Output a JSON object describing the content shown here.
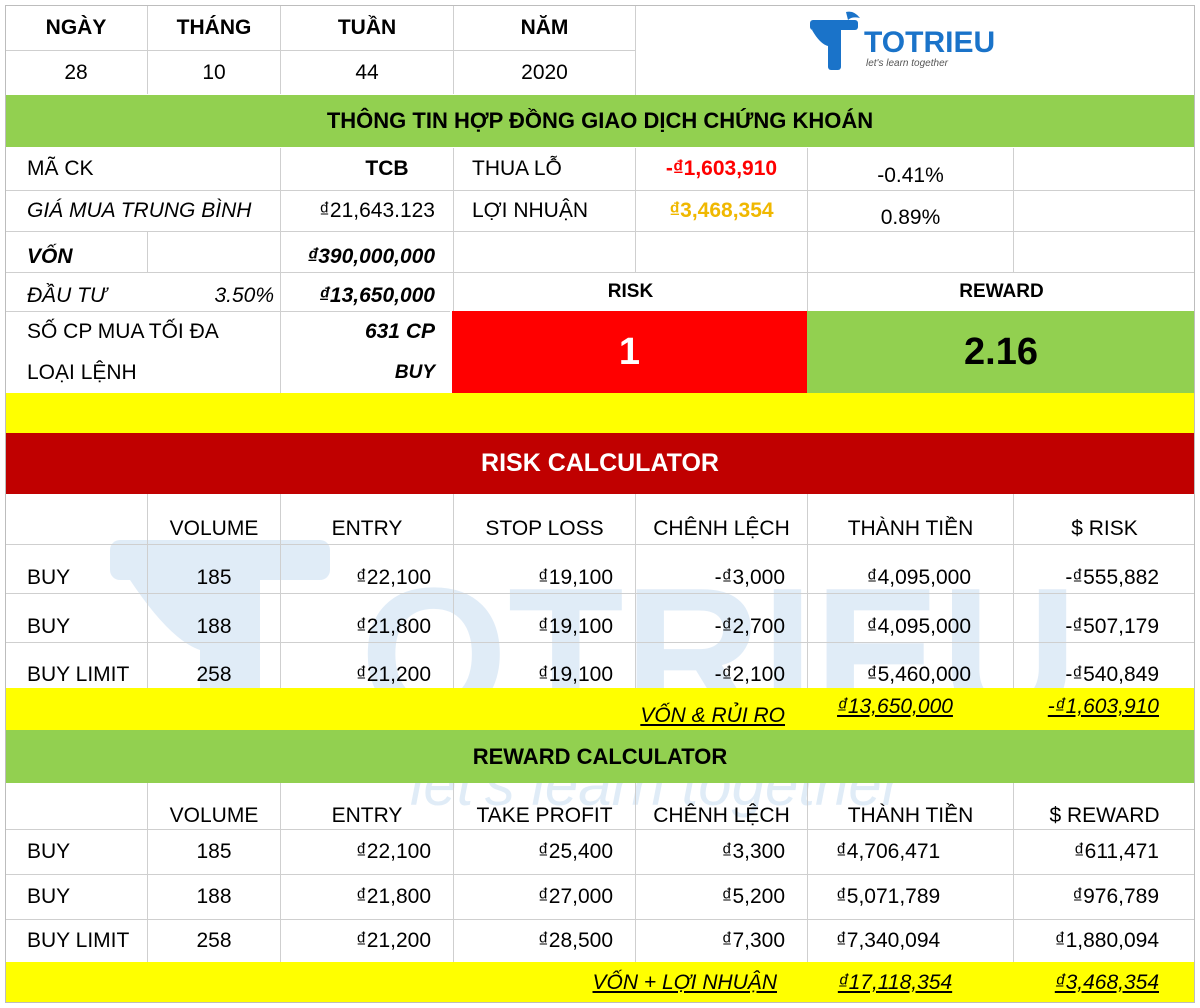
{
  "date_header": {
    "day_label": "NGÀY",
    "month_label": "THÁNG",
    "week_label": "TUẦN",
    "year_label": "NĂM",
    "day": "28",
    "month": "10",
    "week": "44",
    "year": "2020"
  },
  "logo": {
    "brand": "TOTRIEU",
    "tagline": "let's learn together",
    "colors": {
      "blue": "#1a73c9"
    }
  },
  "contract": {
    "title": "THÔNG TIN HỢP ĐỒNG GIAO DỊCH CHỨNG KHOÁN",
    "code_label": "MÃ CK",
    "code": "TCB",
    "loss_label": "THUA LỖ",
    "loss": "-₫1,603,910",
    "loss_pct": "-0.41%",
    "avg_price_label": "GIÁ MUA TRUNG BÌNH",
    "avg_price": "₫21,643.123",
    "profit_label": "LỢI NHUẬN",
    "profit": "₫3,468,354",
    "profit_pct": "0.89%",
    "capital_label": "VỐN",
    "capital": "₫390,000,000",
    "invest_label": "ĐẦU TƯ",
    "invest_pct": "3.50%",
    "invest": "₫13,650,000",
    "max_shares_label": "SỐ CP MUA TỐI ĐA",
    "max_shares": "631 CP",
    "order_type_label": "LOẠI LỆNH",
    "order_type": "BUY",
    "risk_label": "RISK",
    "risk_value": "1",
    "reward_label": "REWARD",
    "reward_value": "2.16"
  },
  "risk_calc": {
    "title": "RISK CALCULATOR",
    "headers": [
      "VOLUME",
      "ENTRY",
      "STOP LOSS",
      "CHÊNH LỆCH",
      "THÀNH TIỀN",
      "$ RISK"
    ],
    "rows": [
      [
        "BUY",
        "185",
        "₫22,100",
        "₫19,100",
        "-₫3,000",
        "₫4,095,000",
        "-₫555,882"
      ],
      [
        "BUY",
        "188",
        "₫21,800",
        "₫19,100",
        "-₫2,700",
        "₫4,095,000",
        "-₫507,179"
      ],
      [
        "BUY LIMIT",
        "258",
        "₫21,200",
        "₫19,100",
        "-₫2,100",
        "₫5,460,000",
        "-₫540,849"
      ]
    ],
    "total_label": "VỐN & RỦI RO",
    "total_amount": "₫13,650,000",
    "total_risk": "-₫1,603,910"
  },
  "reward_calc": {
    "title": "REWARD CALCULATOR",
    "headers": [
      "VOLUME",
      "ENTRY",
      "TAKE PROFIT",
      "CHÊNH LỆCH",
      "THÀNH TIỀN",
      "$ REWARD"
    ],
    "rows": [
      [
        "BUY",
        "185",
        "₫22,100",
        "₫25,400",
        "₫3,300",
        "₫4,706,471",
        "₫611,471"
      ],
      [
        "BUY",
        "188",
        "₫21,800",
        "₫27,000",
        "₫5,200",
        "₫5,071,789",
        "₫976,789"
      ],
      [
        "BUY LIMIT",
        "258",
        "₫21,200",
        "₫28,500",
        "₫7,300",
        "₫7,340,094",
        "₫1,880,094"
      ]
    ],
    "total_label": "VỐN + LỢI NHUẬN",
    "total_amount": "₫17,118,354",
    "total_reward": "₫3,468,354"
  }
}
